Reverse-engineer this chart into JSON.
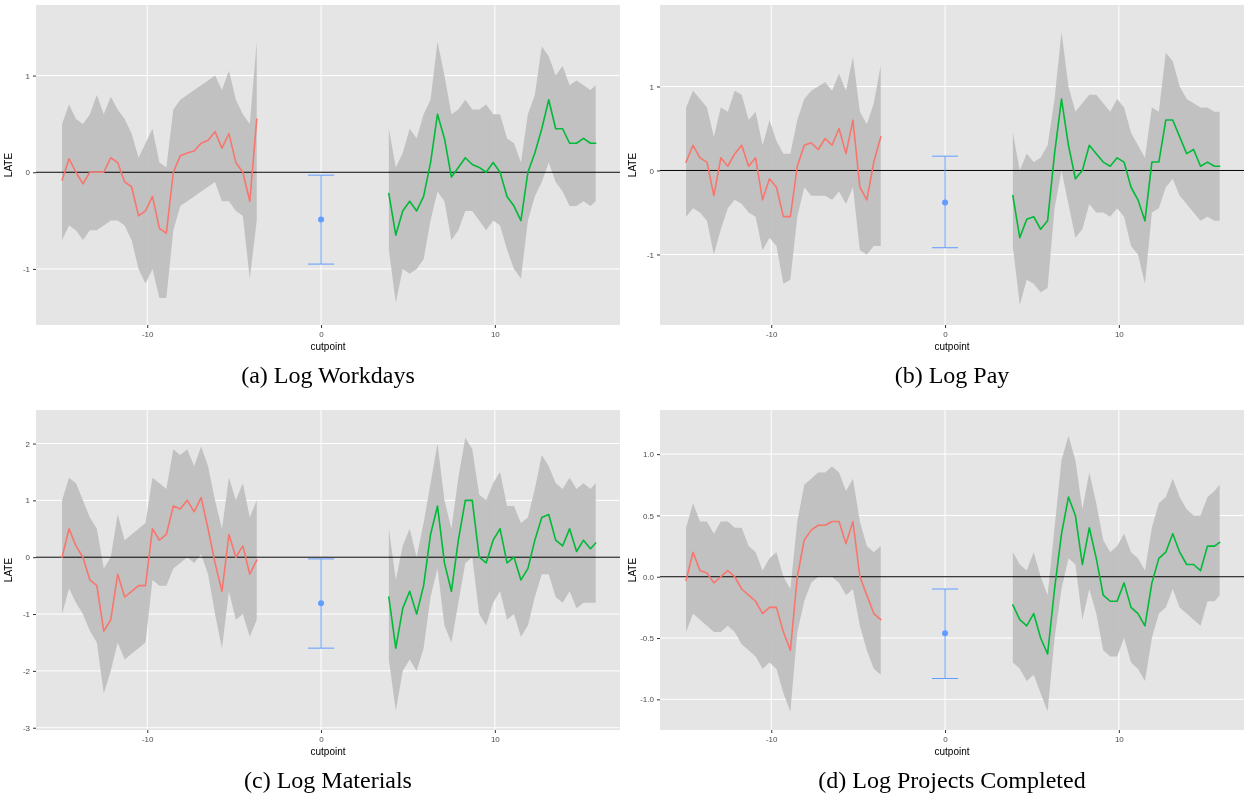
{
  "chart_data": [
    {
      "type": "line",
      "title": "(a) Log Workdays",
      "xlabel": "cutpoint",
      "ylabel": "LATE",
      "xlim": [
        -16.4,
        17.2
      ],
      "ylim": [
        -1.58,
        1.73
      ],
      "xticks": [
        -10,
        0,
        10
      ],
      "yticks": [
        -1,
        0,
        1
      ],
      "grid": true,
      "ref_lines": [
        {
          "axis": "y",
          "value": 0,
          "color": "#000000"
        }
      ],
      "series": [
        {
          "type": "line",
          "color": "#f8766d",
          "x": [
            -14.9,
            -14.5,
            -14.1,
            -13.7,
            -13.3,
            -12.9,
            -12.5,
            -12.1,
            -11.7,
            -11.3,
            -10.9,
            -10.5,
            -10.1,
            -9.7,
            -9.3,
            -8.9,
            -8.5,
            -8.1,
            -7.7,
            -7.3,
            -6.9,
            -6.5,
            -6.1,
            -5.7,
            -5.3,
            -4.9,
            -4.5,
            -4.1,
            -3.7
          ],
          "values": [
            -0.08,
            0.14,
            0,
            -0.12,
            0,
            0,
            0,
            0.15,
            0.1,
            -0.1,
            -0.15,
            -0.45,
            -0.4,
            -0.25,
            -0.58,
            -0.63,
            0,
            0.17,
            0.2,
            0.22,
            0.3,
            0.33,
            0.42,
            0.25,
            0.4,
            0.1,
            0,
            -0.3,
            0.55
          ],
          "lower": [
            -0.7,
            -0.55,
            -0.6,
            -0.7,
            -0.6,
            -0.6,
            -0.55,
            -0.5,
            -0.5,
            -0.55,
            -0.7,
            -1,
            -1.15,
            -1,
            -1.3,
            -1.3,
            -0.6,
            -0.35,
            -0.3,
            -0.25,
            -0.2,
            -0.15,
            -0.1,
            -0.3,
            -0.3,
            -0.4,
            -0.45,
            -1.1,
            -0.5
          ],
          "upper": [
            0.5,
            0.7,
            0.55,
            0.5,
            0.6,
            0.8,
            0.6,
            0.78,
            0.65,
            0.55,
            0.4,
            0.15,
            0.3,
            0.45,
            0.1,
            0.05,
            0.65,
            0.75,
            0.8,
            0.85,
            0.9,
            0.95,
            1,
            0.85,
            1.05,
            0.75,
            0.6,
            0.5,
            1.35
          ]
        },
        {
          "type": "line",
          "color": "#00ba38",
          "x": [
            3.9,
            4.3,
            4.7,
            5.1,
            5.5,
            5.9,
            6.3,
            6.7,
            7.1,
            7.5,
            7.9,
            8.3,
            8.7,
            9.1,
            9.5,
            9.9,
            10.3,
            10.7,
            11.1,
            11.5,
            11.9,
            12.3,
            12.7,
            13.1,
            13.5,
            13.9,
            14.3,
            14.7,
            15.1,
            15.5,
            15.8
          ],
          "values": [
            -0.22,
            -0.65,
            -0.4,
            -0.3,
            -0.4,
            -0.25,
            0.1,
            0.6,
            0.35,
            -0.05,
            0.05,
            0.15,
            0.08,
            0.05,
            0,
            0.1,
            0,
            -0.25,
            -0.35,
            -0.5,
            0,
            0.2,
            0.45,
            0.75,
            0.45,
            0.45,
            0.3,
            0.3,
            0.35,
            0.3,
            0.3
          ],
          "lower": [
            -0.8,
            -1.35,
            -1,
            -1.05,
            -1,
            -0.9,
            -0.5,
            -0.2,
            -0.3,
            -0.7,
            -0.6,
            -0.4,
            -0.4,
            -0.5,
            -0.6,
            -0.5,
            -0.55,
            -0.8,
            -1,
            -1.1,
            -0.5,
            -0.25,
            -0.1,
            0.1,
            -0.1,
            -0.2,
            -0.35,
            -0.35,
            -0.3,
            -0.35,
            -0.3
          ],
          "upper": [
            0.45,
            0.05,
            0.2,
            0.45,
            0.35,
            0.6,
            0.75,
            1.35,
            1,
            0.6,
            0.65,
            0.75,
            0.65,
            0.65,
            0.7,
            0.6,
            0.6,
            0.35,
            0.3,
            0.1,
            0.6,
            0.8,
            1.3,
            1.2,
            1,
            1.1,
            0.9,
            0.95,
            0.9,
            0.85,
            0.9
          ]
        },
        {
          "type": "scatter",
          "color": "#619cff",
          "marker": "circle",
          "x": [
            0
          ],
          "values": [
            -0.49
          ],
          "errors": [
            [
              -0.95,
              -0.03
            ]
          ]
        }
      ]
    },
    {
      "type": "line",
      "title": "(b) Log Pay",
      "xlabel": "cutpoint",
      "ylabel": "LATE",
      "xlim": [
        -16.4,
        17.2
      ],
      "ylim": [
        -1.84,
        1.97
      ],
      "xticks": [
        -10,
        0,
        10
      ],
      "yticks": [
        -1,
        0,
        1
      ],
      "grid": true,
      "ref_lines": [
        {
          "axis": "y",
          "value": 0,
          "color": "#000000"
        }
      ],
      "series": [
        {
          "type": "line",
          "color": "#f8766d",
          "x": [
            -14.9,
            -14.5,
            -14.1,
            -13.7,
            -13.3,
            -12.9,
            -12.5,
            -12.1,
            -11.7,
            -11.3,
            -10.9,
            -10.5,
            -10.1,
            -9.7,
            -9.3,
            -8.9,
            -8.5,
            -8.1,
            -7.7,
            -7.3,
            -6.9,
            -6.5,
            -6.1,
            -5.7,
            -5.3,
            -4.9,
            -4.5,
            -4.1,
            -3.7
          ],
          "values": [
            0.1,
            0.3,
            0.15,
            0.1,
            -0.3,
            0.15,
            0.05,
            0.2,
            0.3,
            0.05,
            0.15,
            -0.35,
            -0.1,
            -0.2,
            -0.55,
            -0.55,
            0.05,
            0.3,
            0.33,
            0.25,
            0.38,
            0.3,
            0.5,
            0.2,
            0.6,
            -0.2,
            -0.35,
            0.1,
            0.4
          ],
          "lower": [
            -0.55,
            -0.45,
            -0.5,
            -0.6,
            -1,
            -0.7,
            -0.45,
            -0.35,
            -0.4,
            -0.5,
            -0.55,
            -0.95,
            -0.8,
            -0.9,
            -1.35,
            -1.3,
            -0.55,
            -0.2,
            -0.3,
            -0.3,
            -0.3,
            -0.35,
            -0.25,
            -0.4,
            -0.2,
            -0.95,
            -1,
            -0.9,
            -0.9
          ],
          "upper": [
            0.75,
            0.95,
            0.85,
            0.75,
            0.4,
            0.75,
            0.7,
            0.95,
            0.9,
            0.6,
            0.7,
            0.3,
            0.6,
            0.35,
            0.2,
            0.2,
            0.6,
            0.85,
            0.95,
            1,
            1.05,
            0.95,
            1.15,
            0.95,
            1.35,
            0.7,
            0.55,
            0.8,
            1.25
          ]
        },
        {
          "type": "line",
          "color": "#00ba38",
          "x": [
            3.9,
            4.3,
            4.7,
            5.1,
            5.5,
            5.9,
            6.3,
            6.7,
            7.1,
            7.5,
            7.9,
            8.3,
            8.7,
            9.1,
            9.5,
            9.9,
            10.3,
            10.7,
            11.1,
            11.5,
            11.9,
            12.3,
            12.7,
            13.1,
            13.5,
            13.9,
            14.3,
            14.7,
            15.1,
            15.5,
            15.8
          ],
          "values": [
            -0.3,
            -0.8,
            -0.58,
            -0.55,
            -0.7,
            -0.6,
            0.2,
            0.85,
            0.3,
            -0.1,
            0,
            0.3,
            0.2,
            0.1,
            0.05,
            0.15,
            0.1,
            -0.2,
            -0.35,
            -0.6,
            0.1,
            0.1,
            0.6,
            0.6,
            0.4,
            0.2,
            0.25,
            0.05,
            0.1,
            0.05,
            0.05
          ],
          "lower": [
            -0.9,
            -1.6,
            -1.3,
            -1.35,
            -1.45,
            -1.4,
            -0.45,
            0,
            -0.4,
            -0.8,
            -0.7,
            -0.4,
            -0.5,
            -0.5,
            -0.55,
            -0.45,
            -0.55,
            -0.9,
            -1,
            -1.35,
            -0.5,
            -0.45,
            -0.2,
            -0.1,
            -0.3,
            -0.4,
            -0.5,
            -0.6,
            -0.55,
            -0.6,
            -0.6
          ],
          "upper": [
            0.45,
            0,
            0.2,
            0.1,
            0.15,
            0.3,
            0.85,
            1.65,
            1,
            0.7,
            0.8,
            0.9,
            0.9,
            0.8,
            0.7,
            0.85,
            0.75,
            0.45,
            0.3,
            0.15,
            0.75,
            0.7,
            1.4,
            1.3,
            1,
            0.85,
            0.8,
            0.75,
            0.75,
            0.7,
            0.7
          ]
        },
        {
          "type": "scatter",
          "color": "#619cff",
          "marker": "circle",
          "x": [
            0
          ],
          "values": [
            -0.38
          ],
          "errors": [
            [
              -0.92,
              0.17
            ]
          ]
        }
      ]
    },
    {
      "type": "line",
      "title": "(c) Log Materials",
      "xlabel": "cutpoint",
      "ylabel": "LATE",
      "xlim": [
        -16.4,
        17.2
      ],
      "ylim": [
        -3.04,
        2.59
      ],
      "xticks": [
        -10,
        0,
        10
      ],
      "yticks": [
        -3,
        -2,
        -1,
        0,
        1,
        2
      ],
      "grid": true,
      "ref_lines": [
        {
          "axis": "y",
          "value": 0,
          "color": "#000000"
        }
      ],
      "series": [
        {
          "type": "line",
          "color": "#f8766d",
          "x": [
            -14.9,
            -14.5,
            -14.1,
            -13.7,
            -13.3,
            -12.9,
            -12.5,
            -12.1,
            -11.7,
            -11.3,
            -10.9,
            -10.5,
            -10.1,
            -9.7,
            -9.3,
            -8.9,
            -8.5,
            -8.1,
            -7.7,
            -7.3,
            -6.9,
            -6.5,
            -6.1,
            -5.7,
            -5.3,
            -4.9,
            -4.5,
            -4.1,
            -3.7
          ],
          "values": [
            0,
            0.5,
            0.2,
            0,
            -0.4,
            -0.5,
            -1.3,
            -1.1,
            -0.3,
            -0.7,
            -0.6,
            -0.5,
            -0.5,
            0.5,
            0.3,
            0.4,
            0.9,
            0.85,
            1,
            0.8,
            1.05,
            0.5,
            -0.1,
            -0.6,
            0.4,
            0,
            0.2,
            -0.3,
            -0.05
          ],
          "lower": [
            -1,
            -0.55,
            -0.8,
            -1,
            -1.3,
            -1.5,
            -2.4,
            -2,
            -1.5,
            -1.8,
            -1.7,
            -1.6,
            -1.5,
            -0.4,
            -0.5,
            -0.5,
            -0.2,
            -0.1,
            0,
            -0.1,
            0.05,
            -0.3,
            -1,
            -1.6,
            -0.6,
            -1.1,
            -1,
            -1.4,
            -1.1
          ],
          "upper": [
            1,
            1.4,
            1.3,
            1,
            0.7,
            0.5,
            -0.2,
            0,
            0.75,
            0.3,
            0.4,
            0.5,
            0.6,
            1.4,
            1.3,
            1.2,
            1.9,
            1.8,
            1.9,
            1.6,
            1.95,
            1.6,
            1,
            0.5,
            1.4,
            1,
            1.3,
            0.7,
            1
          ]
        },
        {
          "type": "line",
          "color": "#00ba38",
          "x": [
            3.9,
            4.3,
            4.7,
            5.1,
            5.5,
            5.9,
            6.3,
            6.7,
            7.1,
            7.5,
            7.9,
            8.3,
            8.7,
            9.1,
            9.5,
            9.9,
            10.3,
            10.7,
            11.1,
            11.5,
            11.9,
            12.3,
            12.7,
            13.1,
            13.5,
            13.9,
            14.3,
            14.7,
            15.1,
            15.5,
            15.8
          ],
          "values": [
            -0.7,
            -1.6,
            -0.9,
            -0.6,
            -1,
            -0.5,
            0.4,
            0.9,
            -0.1,
            -0.6,
            0.3,
            1,
            1,
            0,
            -0.1,
            0.3,
            0.5,
            -0.1,
            0,
            -0.4,
            -0.2,
            0.3,
            0.7,
            0.75,
            0.3,
            0.2,
            0.5,
            0.1,
            0.3,
            0.15,
            0.25
          ],
          "lower": [
            -1.8,
            -2.7,
            -2,
            -1.8,
            -2,
            -1.6,
            -0.7,
            -0.2,
            -1.2,
            -1.5,
            -0.8,
            -0.1,
            0,
            -1,
            -1.2,
            -0.8,
            -0.6,
            -1.1,
            -1,
            -1.4,
            -1.2,
            -0.7,
            -0.3,
            -0.3,
            -0.7,
            -0.8,
            -0.6,
            -0.9,
            -0.8,
            -0.8,
            -0.8
          ],
          "upper": [
            0.5,
            -0.4,
            0.2,
            0.5,
            0,
            0.6,
            1.3,
            2,
            1,
            0.5,
            1.4,
            2.1,
            1.9,
            1.1,
            1,
            1.3,
            1.5,
            0.9,
            0.9,
            0.6,
            0.7,
            1.2,
            1.8,
            1.6,
            1.3,
            1.2,
            1.4,
            1.2,
            1.3,
            1.2,
            1.3
          ]
        },
        {
          "type": "scatter",
          "color": "#619cff",
          "marker": "circle",
          "x": [
            0
          ],
          "values": [
            -0.81
          ],
          "errors": [
            [
              -1.6,
              -0.03
            ]
          ]
        }
      ]
    },
    {
      "type": "line",
      "title": "(d) Log Projects Completed",
      "xlabel": "cutpoint",
      "ylabel": "LATE",
      "xlim": [
        -16.4,
        17.2
      ],
      "ylim": [
        -1.25,
        1.36
      ],
      "xticks": [
        -10,
        0,
        10
      ],
      "yticks": [
        {
          "value": -1,
          "label": "-1.0"
        },
        {
          "value": -0.5,
          "label": "-0.5"
        },
        {
          "value": 0,
          "label": "0.0"
        },
        {
          "value": 0.5,
          "label": "0.5"
        },
        {
          "value": 1,
          "label": "1.0"
        }
      ],
      "grid": true,
      "ref_lines": [
        {
          "axis": "y",
          "value": 0,
          "color": "#000000"
        }
      ],
      "series": [
        {
          "type": "line",
          "color": "#f8766d",
          "x": [
            -14.9,
            -14.5,
            -14.1,
            -13.7,
            -13.3,
            -12.9,
            -12.5,
            -12.1,
            -11.7,
            -11.3,
            -10.9,
            -10.5,
            -10.1,
            -9.7,
            -9.3,
            -8.9,
            -8.5,
            -8.1,
            -7.7,
            -7.3,
            -6.9,
            -6.5,
            -6.1,
            -5.7,
            -5.3,
            -4.9,
            -4.5,
            -4.1,
            -3.7
          ],
          "values": [
            -0.03,
            0.2,
            0.05,
            0.03,
            -0.05,
            0,
            0.05,
            0,
            -0.1,
            -0.15,
            -0.2,
            -0.3,
            -0.25,
            -0.25,
            -0.45,
            -0.6,
            0,
            0.3,
            0.38,
            0.42,
            0.42,
            0.45,
            0.45,
            0.27,
            0.45,
            0,
            -0.15,
            -0.3,
            -0.35
          ],
          "lower": [
            -0.45,
            -0.3,
            -0.35,
            -0.4,
            -0.45,
            -0.45,
            -0.4,
            -0.45,
            -0.55,
            -0.6,
            -0.65,
            -0.75,
            -0.7,
            -0.75,
            -0.95,
            -1.1,
            -0.45,
            -0.2,
            -0.05,
            0,
            0,
            0,
            -0.05,
            -0.15,
            -0.1,
            -0.4,
            -0.6,
            -0.75,
            -0.8
          ],
          "upper": [
            0.4,
            0.6,
            0.45,
            0.45,
            0.35,
            0.45,
            0.45,
            0.4,
            0.4,
            0.25,
            0.2,
            0.05,
            0.15,
            0.2,
            0,
            -0.1,
            0.45,
            0.75,
            0.8,
            0.85,
            0.85,
            0.9,
            0.85,
            0.7,
            0.8,
            0.45,
            0.25,
            0.2,
            0.25
          ]
        },
        {
          "type": "line",
          "color": "#00ba38",
          "x": [
            3.9,
            4.3,
            4.7,
            5.1,
            5.5,
            5.9,
            6.3,
            6.7,
            7.1,
            7.5,
            7.9,
            8.3,
            8.7,
            9.1,
            9.5,
            9.9,
            10.3,
            10.7,
            11.1,
            11.5,
            11.9,
            12.3,
            12.7,
            13.1,
            13.5,
            13.9,
            14.3,
            14.7,
            15.1,
            15.5,
            15.8
          ],
          "values": [
            -0.23,
            -0.35,
            -0.4,
            -0.3,
            -0.5,
            -0.63,
            -0.1,
            0.35,
            0.65,
            0.5,
            0.1,
            0.4,
            0.15,
            -0.15,
            -0.2,
            -0.2,
            -0.05,
            -0.25,
            -0.3,
            -0.4,
            -0.05,
            0.15,
            0.2,
            0.35,
            0.2,
            0.1,
            0.1,
            0.05,
            0.25,
            0.25,
            0.28
          ],
          "lower": [
            -0.7,
            -0.75,
            -0.85,
            -0.8,
            -0.95,
            -1.1,
            -0.5,
            -0.1,
            0.15,
            0.1,
            -0.35,
            -0.1,
            -0.3,
            -0.6,
            -0.65,
            -0.65,
            -0.5,
            -0.7,
            -0.75,
            -0.85,
            -0.5,
            -0.3,
            -0.25,
            -0.1,
            -0.25,
            -0.3,
            -0.35,
            -0.4,
            -0.2,
            -0.2,
            -0.15
          ],
          "upper": [
            0.2,
            0.1,
            0.05,
            0.2,
            0,
            -0.15,
            0.4,
            0.95,
            1.15,
            0.95,
            0.55,
            0.85,
            0.6,
            0.3,
            0.2,
            0.25,
            0.35,
            0.2,
            0.15,
            0.05,
            0.4,
            0.6,
            0.65,
            0.8,
            0.65,
            0.55,
            0.5,
            0.5,
            0.65,
            0.7,
            0.75
          ]
        },
        {
          "type": "scatter",
          "color": "#619cff",
          "marker": "circle",
          "x": [
            0
          ],
          "values": [
            -0.46
          ],
          "errors": [
            [
              -0.83,
              -0.1
            ]
          ]
        }
      ]
    }
  ]
}
